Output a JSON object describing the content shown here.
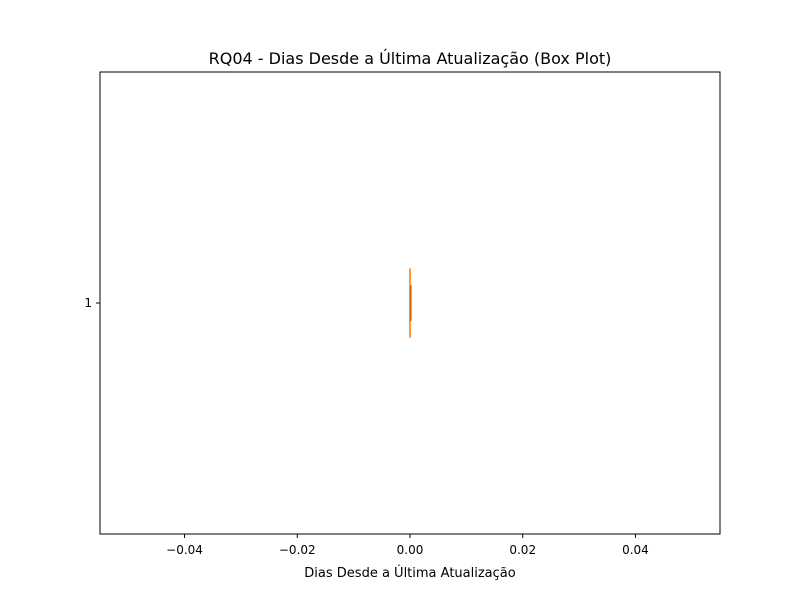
{
  "chart_data": {
    "type": "box",
    "orientation": "horizontal",
    "title": "RQ04 - Dias Desde a Última Atualização (Box Plot)",
    "xlabel": "Dias Desde a Última Atualização",
    "ylabel": "",
    "xlim": [
      -0.055,
      0.055
    ],
    "ylim": [
      0.5,
      1.5
    ],
    "x_ticks": [
      -0.04,
      -0.02,
      0.0,
      0.02,
      0.04
    ],
    "x_tick_labels": [
      "−0.04",
      "−0.02",
      "0.00",
      "0.02",
      "0.04"
    ],
    "y_ticks": [
      1
    ],
    "y_tick_labels": [
      "1"
    ],
    "boxes": [
      {
        "position": 1,
        "min": 0.0,
        "q1": 0.0,
        "median": 0.0,
        "q3": 0.0,
        "max": 0.0
      }
    ],
    "grid": false,
    "colors": {
      "box": "#000000",
      "median": "#ff7f0e",
      "axes": "#000000"
    }
  }
}
